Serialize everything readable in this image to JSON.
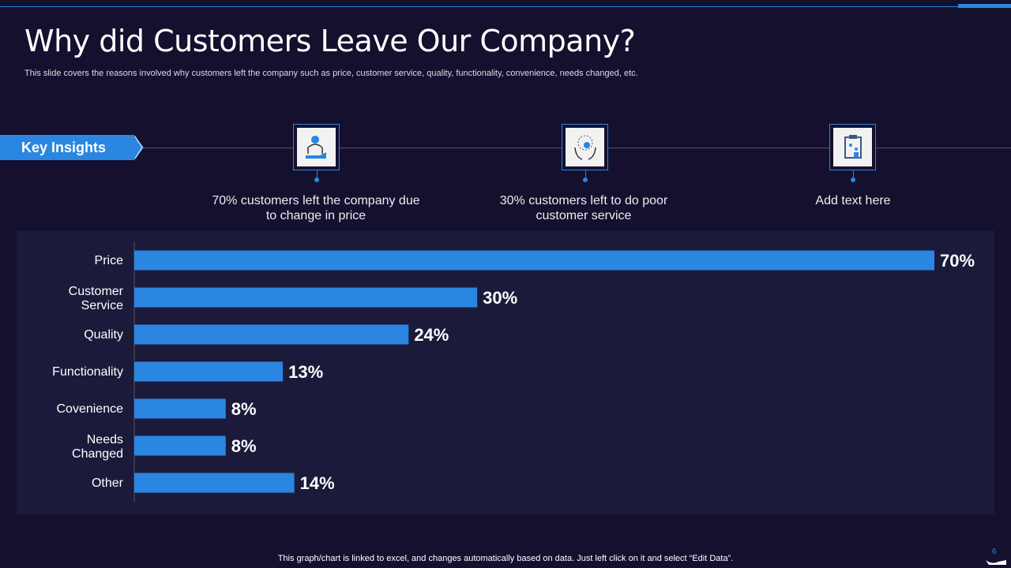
{
  "title": "Why did Customers Leave Our Company?",
  "subtitle": "This slide covers the reasons involved why customers left the company such as price, customer service, quality, functionality, convenience, needs changed, etc.",
  "key_insights_label": "Key Insights",
  "insights": [
    {
      "icon": "hand-user-icon",
      "text": "70% customers left the company due to change in price"
    },
    {
      "icon": "secure-hands-icon",
      "text": "30% customers left to do poor customer service"
    },
    {
      "icon": "clipboard-icon",
      "text": "Add text here"
    }
  ],
  "footer": "This graph/chart is linked to excel, and changes automatically based on data. Just left click on it and select “Edit Data”.",
  "page_number": "6",
  "colors": {
    "bar": "#2a86e0",
    "background": "#14102e",
    "panel": "#1c1a3a"
  },
  "chart_data": {
    "type": "bar",
    "orientation": "horizontal",
    "title": "",
    "xlabel": "",
    "ylabel": "",
    "categories": [
      "Price",
      "Customer Service",
      "Quality",
      "Functionality",
      "Covenience",
      "Needs Changed",
      "Other"
    ],
    "values": [
      70,
      30,
      24,
      13,
      8,
      8,
      14
    ],
    "labels": [
      "70%",
      "30%",
      "24%",
      "13%",
      "8%",
      "8%",
      "14%"
    ],
    "xlim": [
      0,
      70
    ],
    "grid": false
  }
}
